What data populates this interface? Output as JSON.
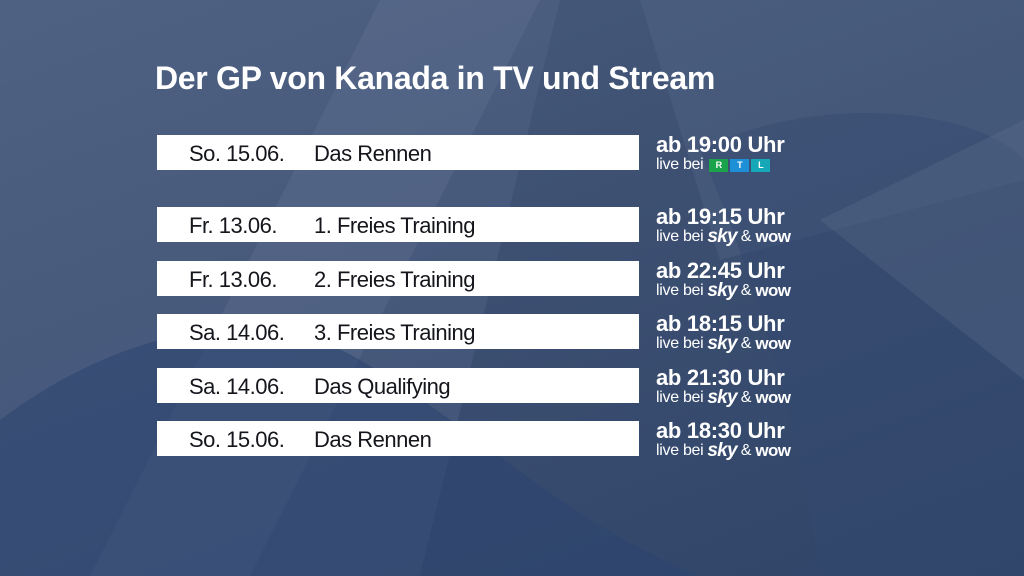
{
  "title": "Der GP von Kanada in TV und Stream",
  "live_prefix": "live bei",
  "rtl_logo": {
    "letters": [
      "R",
      "T",
      "L"
    ],
    "colors": [
      "#1aa34a",
      "#1c8fd6",
      "#17a8b8"
    ]
  },
  "sky_label": "sky",
  "amp": "&",
  "wow_label": "WOW",
  "featured": {
    "date": "So. 15.06.",
    "event": "Das Rennen",
    "time": "ab 19:00 Uhr",
    "channel": "rtl"
  },
  "sessions": [
    {
      "date": "Fr. 13.06.",
      "event": "1. Freies Training",
      "time": "ab 19:15 Uhr",
      "channel": "sky-wow"
    },
    {
      "date": "Fr. 13.06.",
      "event": "2. Freies Training",
      "time": "ab 22:45 Uhr",
      "channel": "sky-wow"
    },
    {
      "date": "Sa. 14.06.",
      "event": "3. Freies Training",
      "time": "ab 18:15 Uhr",
      "channel": "sky-wow"
    },
    {
      "date": "Sa. 14.06.",
      "event": "Das Qualifying",
      "time": "ab 21:30 Uhr",
      "channel": "sky-wow"
    },
    {
      "date": "So. 15.06.",
      "event": "Das Rennen",
      "time": "ab 18:30 Uhr",
      "channel": "sky-wow"
    }
  ],
  "colors": {
    "bar": "#ffffff",
    "text_dark": "#14161c",
    "background": "#3d5072"
  }
}
